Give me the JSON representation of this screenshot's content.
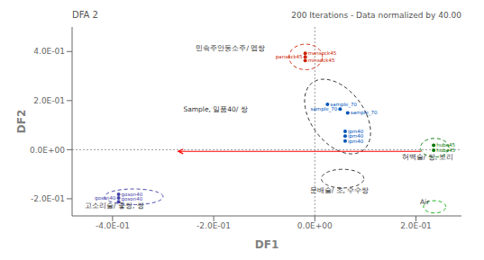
{
  "chart_data": {
    "type": "scatter",
    "title": "DFA 2",
    "subtitle": "200 Iterations - Data normalized by 40.00",
    "x_label": "DF1",
    "y_label": "DF2",
    "xlim": [
      -0.48,
      0.29
    ],
    "ylim": [
      -0.27,
      0.5
    ],
    "xticks": [
      {
        "value": -0.4,
        "label": "-4.0E-01"
      },
      {
        "value": -0.2,
        "label": "-2.0E-01"
      },
      {
        "value": 0,
        "label": "0.0E+00"
      },
      {
        "value": 0.2,
        "label": "2.0E-01"
      }
    ],
    "yticks": [
      {
        "value": -0.2,
        "label": "-2.0E-01"
      },
      {
        "value": 0,
        "label": "0.0E+00"
      },
      {
        "value": 0.2,
        "label": "2.0E-01"
      },
      {
        "value": 0.4,
        "label": "4.0E-01"
      }
    ],
    "grid": false,
    "reference_lines": {
      "x": 0.0,
      "y": 0.0
    },
    "groups": [
      {
        "label": "민속주안동소주/ 멥쌍",
        "label_x": -0.235,
        "label_y": 0.415,
        "color": "#cc2200",
        "ellipse": {
          "center_x": -0.018,
          "center_y": 0.378,
          "rx": 0.033,
          "ry": 0.052,
          "angle": 0,
          "color": "#cc2200",
          "line_style": "dashed"
        },
        "x": [
          -0.019,
          -0.019,
          -0.019
        ],
        "y": [
          0.393,
          0.378,
          0.363
        ],
        "point_labels": [
          "mansock45",
          "pansock45",
          "minsock45"
        ]
      },
      {
        "label": "Sample, 일품40/ 쌍",
        "label_x": -0.26,
        "label_y": 0.165,
        "color": "#0055bb",
        "ellipse": {
          "center_x": 0.045,
          "center_y": 0.135,
          "rx": 0.058,
          "ry": 0.155,
          "angle": 12,
          "color": "#333333",
          "line_style": "dashed"
        },
        "x": [
          0.025,
          0.05,
          0.065,
          0.06,
          0.06,
          0.06
        ],
        "y": [
          0.185,
          0.165,
          0.15,
          0.075,
          0.055,
          0.035
        ],
        "point_labels": [
          "sample_70",
          "sample_70",
          "sample_70",
          "ipm40",
          "ipm40",
          "ipm40"
        ]
      },
      {
        "label": "허백술/ 쌍, 보리",
        "label_x": 0.172,
        "label_y": -0.028,
        "color": "#007700",
        "ellipse": {
          "center_x": 0.237,
          "center_y": 0.008,
          "rx": 0.028,
          "ry": 0.038,
          "angle": 0,
          "color": "#007700",
          "line_style": "dashed"
        },
        "x": [
          0.235,
          0.235
        ],
        "y": [
          0.018,
          -0.002
        ],
        "point_labels": [
          "huba45",
          "huba45"
        ]
      },
      {
        "label": "문배술/ 조, 수수쌍",
        "label_x": -0.01,
        "label_y": -0.165,
        "ellipse": {
          "center_x": 0.055,
          "center_y": -0.118,
          "rx": 0.042,
          "ry": 0.038,
          "angle": 0,
          "color": "#333333",
          "line_style": "dashed"
        },
        "x": [],
        "y": [],
        "point_labels": []
      },
      {
        "label": "고소리술/ 좋쌍, 쌍",
        "label_x": -0.455,
        "label_y": -0.228,
        "color": "#4444aa",
        "ellipse": {
          "center_x": -0.358,
          "center_y": -0.192,
          "rx": 0.058,
          "ry": 0.032,
          "angle": 0,
          "color": "#4444aa",
          "line_style": "dashed"
        },
        "x": [
          -0.388,
          -0.388,
          -0.388
        ],
        "y": [
          -0.182,
          -0.197,
          -0.212
        ],
        "point_labels": [
          "goson40",
          "goson40",
          "goson40"
        ]
      },
      {
        "label": "Air",
        "label_x": 0.208,
        "label_y": -0.212,
        "ellipse": {
          "center_x": 0.237,
          "center_y": -0.233,
          "rx": 0.022,
          "ry": 0.025,
          "angle": 0,
          "color": "#00aa00",
          "line_style": "dashed"
        },
        "x": [],
        "y": [],
        "point_labels": []
      }
    ],
    "arrow": {
      "x_start": 0.21,
      "y_start": -0.007,
      "x_end": -0.27,
      "y_end": -0.007,
      "color": "red"
    }
  }
}
